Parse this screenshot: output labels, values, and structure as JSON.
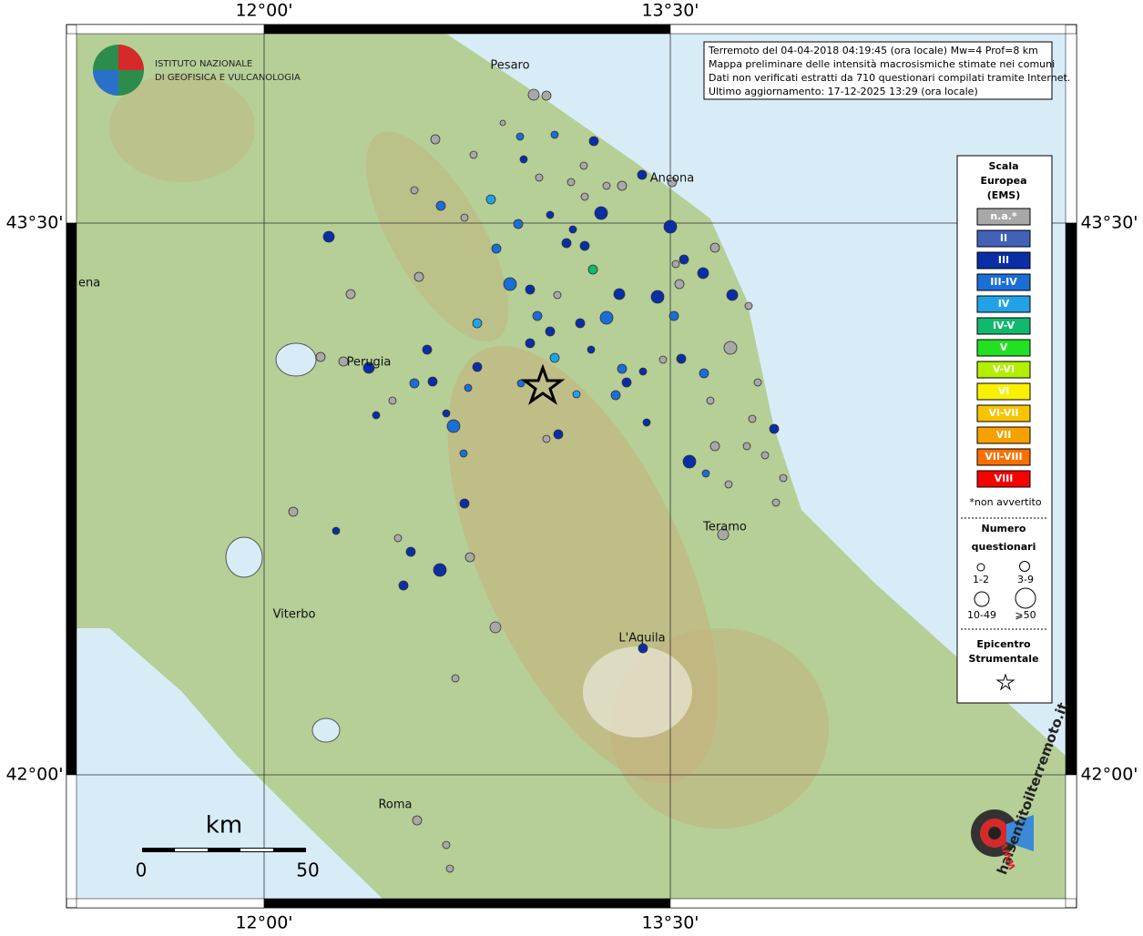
{
  "header": {
    "lines": [
      "Terremoto del 04-04-2018 04:19:45 (ora locale) Mw=4 Prof=8 km",
      "Mappa preliminare delle intensità macrosismiche stimate nei comuni",
      "Dati non verificati estratti da 710 questionari compilati tramite Internet.",
      "Ultimo aggiornamento: 17-12-2025 13:29 (ora locale)"
    ]
  },
  "logo": {
    "lines": [
      "ISTITUTO NAZIONALE",
      "DI GEOFISICA E VULCANOLOGIA"
    ]
  },
  "axes": {
    "top": [
      "12°00'",
      "13°30'"
    ],
    "bottom": [
      "12°00'",
      "13°30'"
    ],
    "left": [
      "43°30'",
      "42°00'"
    ],
    "right": [
      "43°30'",
      "42°00'"
    ]
  },
  "places": [
    "Pesaro",
    "Ancona",
    "ena",
    "Perugia",
    "Teramo",
    "Viterbo",
    "L'Aquila",
    "Roma"
  ],
  "legend": {
    "title": [
      "Scala",
      "Europea",
      "(EMS)"
    ],
    "classes": [
      {
        "label": "n.a.*",
        "color": "#a8a8a8"
      },
      {
        "label": "II",
        "color": "#4262b8"
      },
      {
        "label": "III",
        "color": "#0a2ea6"
      },
      {
        "label": "III-IV",
        "color": "#1a6ed6"
      },
      {
        "label": "IV",
        "color": "#22a2e6"
      },
      {
        "label": "IV-V",
        "color": "#12b86e"
      },
      {
        "label": "V",
        "color": "#22e022"
      },
      {
        "label": "V-VI",
        "color": "#b2f000"
      },
      {
        "label": "VI",
        "color": "#f8f000"
      },
      {
        "label": "VI-VII",
        "color": "#f8c400"
      },
      {
        "label": "VII",
        "color": "#f8a000"
      },
      {
        "label": "VII-VIII",
        "color": "#f87000"
      },
      {
        "label": "VIII",
        "color": "#f80000"
      }
    ],
    "note": "*non avvertito",
    "size_title": [
      "Numero",
      "questionari"
    ],
    "sizes": [
      "1-2",
      "3-9",
      "10-49",
      "⩾50"
    ],
    "epicenter_title": [
      "Epicentro",
      "Strumentale"
    ]
  },
  "scale": {
    "unit": "km",
    "labels": [
      "0",
      "50"
    ]
  },
  "brand": {
    "name": "haisentitoilterremoto.it",
    "www": "www."
  }
}
